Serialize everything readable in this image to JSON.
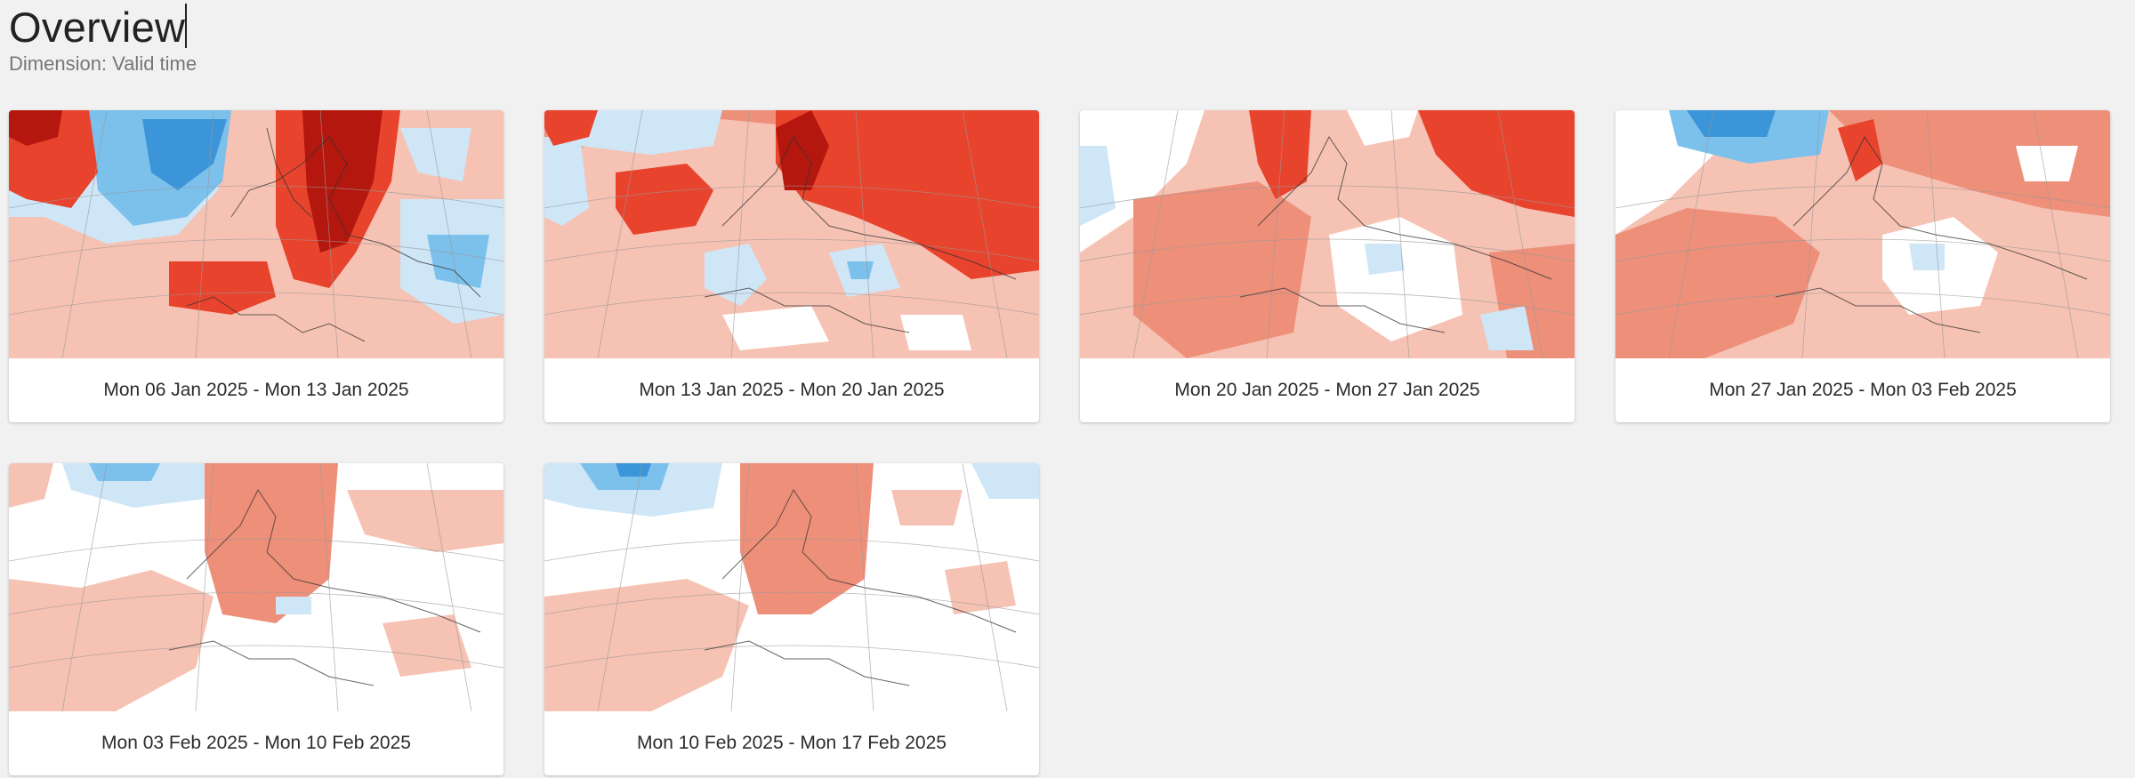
{
  "page": {
    "title": "Overview",
    "subtitle": "Dimension: Valid time"
  },
  "colors": {
    "background": "#f1f1f1",
    "card": "#ffffff",
    "warm_light": "#f6c2b3",
    "warm_mid": "#ee8f79",
    "warm_strong": "#e8432c",
    "warm_dark": "#b3170e",
    "cold_light": "#cfe6f7",
    "cold_mid": "#7cc0ec",
    "cold_strong": "#3b95d8"
  },
  "cards": [
    {
      "label": "Mon 06 Jan 2025 - Mon 13 Jan 2025"
    },
    {
      "label": "Mon 13 Jan 2025 - Mon 20 Jan 2025"
    },
    {
      "label": "Mon 20 Jan 2025 - Mon 27 Jan 2025"
    },
    {
      "label": "Mon 27 Jan 2025 - Mon 03 Feb 2025"
    },
    {
      "label": "Mon 03 Feb 2025 - Mon 10 Feb 2025"
    },
    {
      "label": "Mon 10 Feb 2025 - Mon 17 Feb 2025"
    }
  ]
}
